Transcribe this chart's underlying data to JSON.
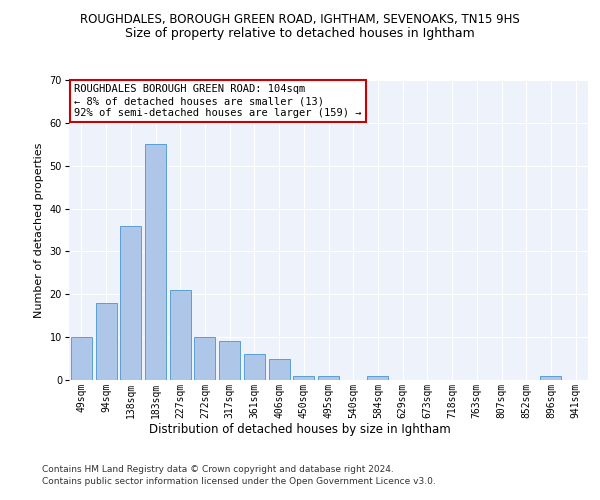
{
  "title1": "ROUGHDALES, BOROUGH GREEN ROAD, IGHTHAM, SEVENOAKS, TN15 9HS",
  "title2": "Size of property relative to detached houses in Ightham",
  "xlabel": "Distribution of detached houses by size in Ightham",
  "ylabel": "Number of detached properties",
  "categories": [
    "49sqm",
    "94sqm",
    "138sqm",
    "183sqm",
    "227sqm",
    "272sqm",
    "317sqm",
    "361sqm",
    "406sqm",
    "450sqm",
    "495sqm",
    "540sqm",
    "584sqm",
    "629sqm",
    "673sqm",
    "718sqm",
    "763sqm",
    "807sqm",
    "852sqm",
    "896sqm",
    "941sqm"
  ],
  "values": [
    10,
    18,
    36,
    55,
    21,
    10,
    9,
    6,
    5,
    1,
    1,
    0,
    1,
    0,
    0,
    0,
    0,
    0,
    0,
    1,
    0
  ],
  "bar_color": "#aec6e8",
  "bar_edge_color": "#5a9fd4",
  "annotation_box_text": "ROUGHDALES BOROUGH GREEN ROAD: 104sqm\n← 8% of detached houses are smaller (13)\n92% of semi-detached houses are larger (159) →",
  "annotation_box_color": "#ffffff",
  "annotation_box_edge_color": "#cc0000",
  "footnote1": "Contains HM Land Registry data © Crown copyright and database right 2024.",
  "footnote2": "Contains public sector information licensed under the Open Government Licence v3.0.",
  "ylim": [
    0,
    70
  ],
  "yticks": [
    0,
    10,
    20,
    30,
    40,
    50,
    60,
    70
  ],
  "bg_color": "#eef2fb",
  "fig_bg_color": "#ffffff",
  "title1_fontsize": 8.5,
  "title2_fontsize": 9,
  "xlabel_fontsize": 8.5,
  "ylabel_fontsize": 8,
  "tick_fontsize": 7,
  "annotation_fontsize": 7.5,
  "footnote_fontsize": 6.5
}
